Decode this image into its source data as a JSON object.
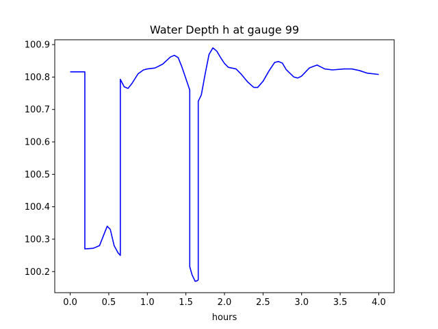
{
  "chart_data": {
    "type": "line",
    "title": "Water Depth h at gauge 99",
    "xlabel": "hours",
    "ylabel": "",
    "xlim": [
      -0.2,
      4.2
    ],
    "ylim": [
      100.135,
      100.915
    ],
    "xticks": [
      0.0,
      0.5,
      1.0,
      1.5,
      2.0,
      2.5,
      3.0,
      3.5,
      4.0
    ],
    "xtick_labels": [
      "0.0",
      "0.5",
      "1.0",
      "1.5",
      "2.0",
      "2.5",
      "3.0",
      "3.5",
      "4.0"
    ],
    "yticks": [
      100.2,
      100.3,
      100.4,
      100.5,
      100.6,
      100.7,
      100.8,
      100.9
    ],
    "ytick_labels": [
      "100.2",
      "100.3",
      "100.4",
      "100.5",
      "100.6",
      "100.7",
      "100.8",
      "100.9"
    ],
    "grid": false,
    "series": [
      {
        "color": "#0000ff",
        "x": [
          0.0,
          0.19,
          0.19,
          0.3,
          0.38,
          0.43,
          0.48,
          0.52,
          0.57,
          0.62,
          0.65,
          0.65,
          0.7,
          0.75,
          0.8,
          0.88,
          0.95,
          1.0,
          1.1,
          1.2,
          1.3,
          1.35,
          1.4,
          1.45,
          1.55,
          1.55,
          1.58,
          1.62,
          1.65,
          1.66,
          1.66,
          1.7,
          1.75,
          1.8,
          1.85,
          1.9,
          1.95,
          2.0,
          2.05,
          2.15,
          2.22,
          2.3,
          2.38,
          2.43,
          2.5,
          2.58,
          2.65,
          2.7,
          2.75,
          2.8,
          2.9,
          2.95,
          3.0,
          3.1,
          3.2,
          3.3,
          3.4,
          3.55,
          3.65,
          3.75,
          3.85,
          4.0
        ],
        "y": [
          100.816,
          100.816,
          100.27,
          100.272,
          100.28,
          100.31,
          100.34,
          100.33,
          100.28,
          100.258,
          100.25,
          100.793,
          100.77,
          100.765,
          100.78,
          100.81,
          100.822,
          100.825,
          100.828,
          100.84,
          100.862,
          100.867,
          100.86,
          100.83,
          100.76,
          100.215,
          100.19,
          100.17,
          100.172,
          100.175,
          100.725,
          100.745,
          100.81,
          100.87,
          100.89,
          100.88,
          100.86,
          100.842,
          100.83,
          100.825,
          100.808,
          100.785,
          100.768,
          100.768,
          100.787,
          100.82,
          100.845,
          100.848,
          100.843,
          100.823,
          100.8,
          100.797,
          100.803,
          100.828,
          100.837,
          100.825,
          100.822,
          100.825,
          100.825,
          100.82,
          100.812,
          100.808
        ]
      }
    ]
  }
}
